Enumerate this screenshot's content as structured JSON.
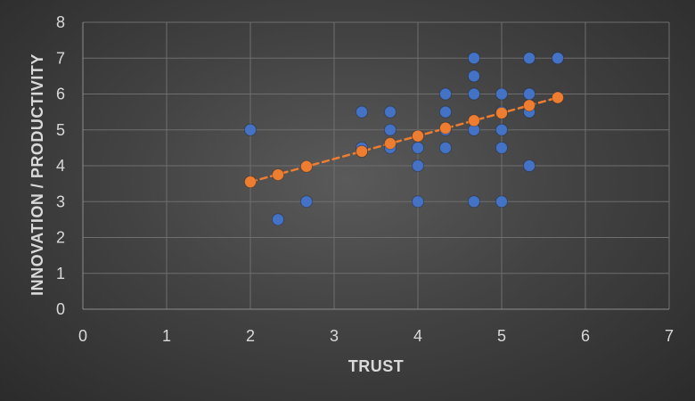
{
  "chart_data": {
    "type": "scatter",
    "xlabel": "TRUST",
    "ylabel": "INNOVATION / PRODUCTIVITY",
    "xlim": [
      0,
      7
    ],
    "ylim": [
      0,
      8
    ],
    "xticks": [
      "0",
      "1",
      "2",
      "3",
      "4",
      "5",
      "6",
      "7"
    ],
    "yticks": [
      "0",
      "1",
      "2",
      "3",
      "4",
      "5",
      "6",
      "7",
      "8"
    ],
    "grid": true,
    "legend": "none",
    "colors": {
      "observed": "#4472c4",
      "fitted": "#ed7d31",
      "trendline": "#ed7d31"
    },
    "series": [
      {
        "kind": "observed",
        "points": [
          [
            2,
            5
          ],
          [
            2.33,
            2.5
          ],
          [
            2.67,
            3
          ],
          [
            3.33,
            5.5
          ],
          [
            3.33,
            4.5
          ],
          [
            3.33,
            4.4
          ],
          [
            3.67,
            5.5
          ],
          [
            3.67,
            5
          ],
          [
            3.67,
            4.5
          ],
          [
            4,
            4.5
          ],
          [
            4,
            4
          ],
          [
            4,
            3
          ],
          [
            4.33,
            6
          ],
          [
            4.33,
            5.5
          ],
          [
            4.33,
            5
          ],
          [
            4.33,
            4.5
          ],
          [
            4.67,
            7
          ],
          [
            4.67,
            6.5
          ],
          [
            4.67,
            6
          ],
          [
            4.67,
            5
          ],
          [
            4.67,
            3
          ],
          [
            5,
            6
          ],
          [
            5,
            5.5
          ],
          [
            5,
            5
          ],
          [
            5,
            4.5
          ],
          [
            5,
            3
          ],
          [
            5.33,
            7
          ],
          [
            5.33,
            6
          ],
          [
            5.33,
            5.5
          ],
          [
            5.33,
            4
          ],
          [
            5.67,
            7
          ]
        ]
      },
      {
        "kind": "fitted",
        "points": [
          [
            2,
            3.55
          ],
          [
            2.33,
            3.75
          ],
          [
            2.67,
            3.98
          ],
          [
            3.33,
            4.4
          ],
          [
            3.67,
            4.62
          ],
          [
            4,
            4.83
          ],
          [
            4.33,
            5.05
          ],
          [
            4.67,
            5.26
          ],
          [
            5,
            5.47
          ],
          [
            5.33,
            5.68
          ],
          [
            5.67,
            5.9
          ]
        ]
      }
    ],
    "trendline": {
      "x": [
        2,
        5.67
      ],
      "y": [
        3.55,
        5.9
      ]
    }
  }
}
